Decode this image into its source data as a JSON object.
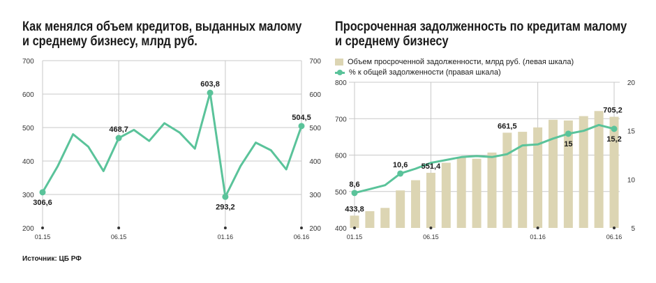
{
  "source": "Источник: ЦБ РФ",
  "chart_data": [
    {
      "type": "line",
      "title": "Как менялся объем кредитов, выданных малому и среднему бизнесу, млрд руб.",
      "title_lines": [
        "Как менялся объем кредитов, выданных малому",
        "и среднему бизнесу, млрд руб."
      ],
      "x_tick_labels": [
        "01.15",
        "06.15",
        "01.16",
        "06.16"
      ],
      "x_tick_indices": [
        0,
        5,
        12,
        17
      ],
      "ylim": [
        200,
        700
      ],
      "y_ticks": [
        200,
        300,
        400,
        500,
        600,
        700
      ],
      "grid": true,
      "series": [
        {
          "values": [
            306.6,
            385,
            480,
            443,
            370,
            468.7,
            493,
            460,
            513,
            485,
            437,
            603.8,
            293.2,
            385,
            455,
            432,
            375,
            504.5
          ]
        }
      ],
      "data_labels": [
        {
          "index": 0,
          "text": "306,6",
          "pos": "below"
        },
        {
          "index": 5,
          "text": "468,7",
          "pos": "above"
        },
        {
          "index": 11,
          "text": "603,8",
          "pos": "above"
        },
        {
          "index": 12,
          "text": "293,2",
          "pos": "below"
        },
        {
          "index": 17,
          "text": "504,5",
          "pos": "above"
        }
      ]
    },
    {
      "type": "bar",
      "title": "Просроченная задолженность по кредитам малому и среднему бизнесу",
      "title_lines": [
        "Просроченная задолженность по кредитам малому",
        "и среднему бизнесу"
      ],
      "legend_placement": "top-left",
      "x_tick_labels": [
        "01.15",
        "06.15",
        "01.16",
        "06.16"
      ],
      "x_tick_indices": [
        0,
        5,
        12,
        17
      ],
      "ylim_left": [
        400,
        800
      ],
      "y_ticks_left": [
        400,
        500,
        600,
        700,
        800
      ],
      "ylim_right": [
        5,
        20
      ],
      "y_ticks_right": [
        5,
        10,
        15,
        20
      ],
      "grid": true,
      "series": [
        {
          "name": "Объем просроченной задолженности, млрд руб. (левая шкала)",
          "type": "bar",
          "color": "#dcd5b3",
          "values": [
            433.8,
            446,
            455,
            503,
            531,
            551.4,
            579,
            594,
            590,
            607,
            661.5,
            664,
            676,
            697,
            695,
            707,
            721,
            705.2
          ]
        },
        {
          "name": "% к общей задолженности (правая шкала)",
          "type": "line",
          "color": "#5ac39a",
          "values": [
            8.6,
            9.0,
            9.4,
            10.6,
            11.1,
            11.7,
            12.0,
            12.3,
            12.4,
            12.3,
            12.6,
            13.5,
            13.6,
            14.2,
            14.7,
            15.0,
            15.6,
            15.2
          ]
        }
      ],
      "bar_labels": [
        {
          "index": 0,
          "text": "433,8"
        },
        {
          "index": 5,
          "text": "551,4"
        },
        {
          "index": 10,
          "text": "661,5"
        },
        {
          "index": 17,
          "text": "705,2"
        }
      ],
      "line_labels": [
        {
          "index": 0,
          "text": "8,6"
        },
        {
          "index": 3,
          "text": "10,6"
        },
        {
          "index": 14,
          "text": "15"
        },
        {
          "index": 17,
          "text": "15,2"
        }
      ],
      "line_markers": [
        0,
        3,
        14,
        17
      ]
    }
  ]
}
